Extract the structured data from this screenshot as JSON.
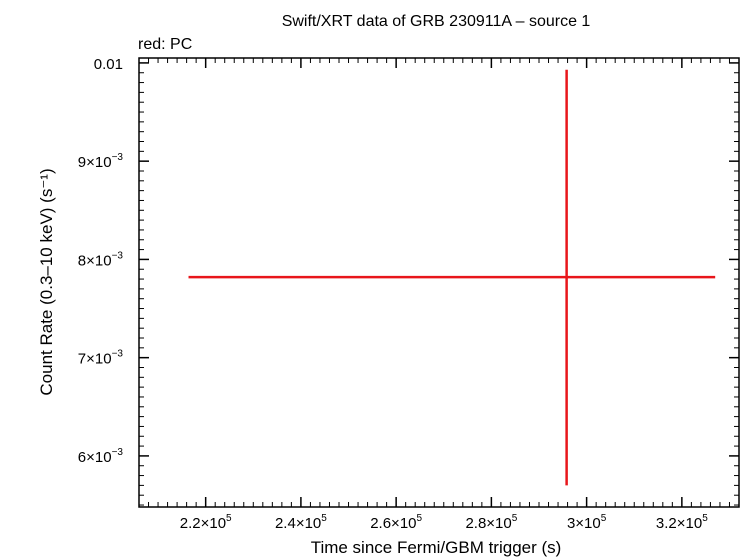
{
  "chart_data": {
    "type": "scatter",
    "title": "Swift/XRT data of GRB 230911A – source 1",
    "subtitle": "red: PC",
    "xlabel": "Time since Fermi/GBM trigger (s)",
    "ylabel": "Count Rate (0.3–10 keV) (s⁻¹)",
    "xlim": [
      206000,
      332000
    ],
    "ylim": [
      0.00548,
      0.01005
    ],
    "x_ticks": [
      {
        "value": 220000,
        "mant": "2.2",
        "exp": "5"
      },
      {
        "value": 240000,
        "mant": "2.4",
        "exp": "5"
      },
      {
        "value": 260000,
        "mant": "2.6",
        "exp": "5"
      },
      {
        "value": 280000,
        "mant": "2.8",
        "exp": "5"
      },
      {
        "value": 300000,
        "mant": "3",
        "exp": "5"
      },
      {
        "value": 320000,
        "mant": "3.2",
        "exp": "5"
      }
    ],
    "y_ticks": [
      {
        "value": 0.01,
        "label": "0.01"
      },
      {
        "value": 0.009,
        "mant": "9",
        "exp": "−3"
      },
      {
        "value": 0.008,
        "mant": "8",
        "exp": "−3"
      },
      {
        "value": 0.007,
        "mant": "7",
        "exp": "−3"
      },
      {
        "value": 0.006,
        "mant": "6",
        "exp": "−3"
      }
    ],
    "series": [
      {
        "name": "PC",
        "color": "#e8161b",
        "points": [
          {
            "x": 295800,
            "x_low": 216400,
            "x_high": 327000,
            "y": 0.00782,
            "y_low": 0.0057,
            "y_high": 0.00993
          }
        ]
      }
    ]
  }
}
